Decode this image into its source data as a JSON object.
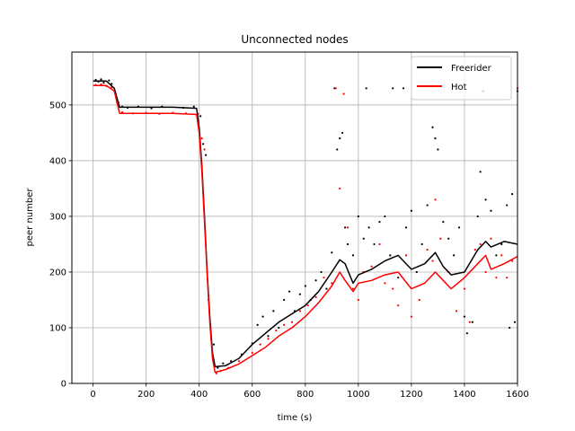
{
  "chart_data": {
    "type": "line",
    "title": "Unconnected nodes",
    "xlabel": "time (s)",
    "ylabel": "peer number",
    "xlim": [
      -80,
      1600
    ],
    "ylim": [
      0,
      595
    ],
    "xticks": [
      0,
      200,
      400,
      600,
      800,
      1000,
      1200,
      1400,
      1600
    ],
    "yticks": [
      0,
      100,
      200,
      300,
      400,
      500
    ],
    "grid": true,
    "legend": "top-right",
    "series": [
      {
        "name": "Freerider",
        "color": "#000000",
        "x": [
          0,
          50,
          80,
          100,
          150,
          200,
          300,
          390,
          400,
          410,
          420,
          430,
          440,
          450,
          460,
          500,
          550,
          600,
          650,
          700,
          750,
          800,
          850,
          900,
          930,
          950,
          980,
          1000,
          1050,
          1100,
          1150,
          1200,
          1250,
          1290,
          1320,
          1350,
          1400,
          1450,
          1480,
          1500,
          1550,
          1600
        ],
        "y": [
          543,
          543,
          530,
          496,
          496,
          496,
          496,
          494,
          460,
          390,
          300,
          200,
          120,
          55,
          30,
          32,
          45,
          70,
          90,
          110,
          125,
          140,
          165,
          200,
          222,
          215,
          180,
          195,
          205,
          220,
          230,
          205,
          215,
          235,
          210,
          195,
          200,
          240,
          255,
          245,
          255,
          250
        ]
      },
      {
        "name": "Hot",
        "color": "#ff0000",
        "x": [
          0,
          50,
          80,
          100,
          150,
          200,
          300,
          390,
          400,
          410,
          420,
          430,
          440,
          450,
          460,
          500,
          550,
          600,
          650,
          700,
          750,
          800,
          850,
          900,
          930,
          950,
          980,
          1000,
          1050,
          1100,
          1150,
          1200,
          1250,
          1290,
          1320,
          1350,
          1400,
          1450,
          1480,
          1500,
          1550,
          1600
        ],
        "y": [
          535,
          535,
          525,
          485,
          485,
          485,
          485,
          483,
          450,
          380,
          290,
          195,
          110,
          45,
          20,
          25,
          35,
          50,
          65,
          85,
          100,
          120,
          145,
          175,
          200,
          185,
          165,
          180,
          185,
          195,
          200,
          170,
          180,
          200,
          185,
          170,
          190,
          215,
          230,
          205,
          215,
          228
        ]
      }
    ],
    "scatter_series": [
      {
        "name": "Freerider",
        "color": "#000000",
        "points": [
          [
            10,
            545
          ],
          [
            20,
            542
          ],
          [
            30,
            546
          ],
          [
            40,
            540
          ],
          [
            60,
            544
          ],
          [
            70,
            538
          ],
          [
            85,
            520
          ],
          [
            95,
            505
          ],
          [
            110,
            497
          ],
          [
            130,
            495
          ],
          [
            170,
            497
          ],
          [
            220,
            494
          ],
          [
            260,
            497
          ],
          [
            340,
            495
          ],
          [
            380,
            497
          ],
          [
            405,
            480
          ],
          [
            415,
            430
          ],
          [
            425,
            410
          ],
          [
            445,
            80
          ],
          [
            455,
            70
          ],
          [
            470,
            28
          ],
          [
            490,
            36
          ],
          [
            520,
            40
          ],
          [
            560,
            52
          ],
          [
            600,
            72
          ],
          [
            620,
            105
          ],
          [
            640,
            120
          ],
          [
            660,
            85
          ],
          [
            680,
            130
          ],
          [
            700,
            100
          ],
          [
            720,
            150
          ],
          [
            740,
            165
          ],
          [
            760,
            130
          ],
          [
            780,
            160
          ],
          [
            800,
            175
          ],
          [
            820,
            150
          ],
          [
            840,
            185
          ],
          [
            860,
            200
          ],
          [
            880,
            170
          ],
          [
            900,
            235
          ],
          [
            910,
            530
          ],
          [
            920,
            420
          ],
          [
            930,
            440
          ],
          [
            940,
            450
          ],
          [
            950,
            280
          ],
          [
            960,
            250
          ],
          [
            980,
            230
          ],
          [
            1000,
            300
          ],
          [
            1020,
            260
          ],
          [
            1030,
            530
          ],
          [
            1040,
            280
          ],
          [
            1060,
            250
          ],
          [
            1080,
            290
          ],
          [
            1100,
            300
          ],
          [
            1120,
            230
          ],
          [
            1130,
            530
          ],
          [
            1150,
            190
          ],
          [
            1170,
            530
          ],
          [
            1180,
            280
          ],
          [
            1200,
            310
          ],
          [
            1220,
            200
          ],
          [
            1240,
            250
          ],
          [
            1260,
            320
          ],
          [
            1280,
            460
          ],
          [
            1290,
            440
          ],
          [
            1300,
            420
          ],
          [
            1320,
            290
          ],
          [
            1340,
            260
          ],
          [
            1360,
            230
          ],
          [
            1380,
            280
          ],
          [
            1400,
            120
          ],
          [
            1410,
            90
          ],
          [
            1430,
            110
          ],
          [
            1450,
            300
          ],
          [
            1460,
            380
          ],
          [
            1470,
            525
          ],
          [
            1480,
            330
          ],
          [
            1500,
            310
          ],
          [
            1520,
            230
          ],
          [
            1540,
            250
          ],
          [
            1560,
            320
          ],
          [
            1570,
            100
          ],
          [
            1580,
            340
          ],
          [
            1590,
            110
          ],
          [
            1600,
            525
          ]
        ]
      },
      {
        "name": "Hot",
        "color": "#ff0000",
        "points": [
          [
            10,
            536
          ],
          [
            30,
            537
          ],
          [
            50,
            534
          ],
          [
            70,
            532
          ],
          [
            90,
            505
          ],
          [
            110,
            487
          ],
          [
            150,
            485
          ],
          [
            200,
            486
          ],
          [
            250,
            484
          ],
          [
            300,
            486
          ],
          [
            350,
            485
          ],
          [
            395,
            484
          ],
          [
            410,
            440
          ],
          [
            420,
            420
          ],
          [
            435,
            150
          ],
          [
            450,
            50
          ],
          [
            465,
            18
          ],
          [
            480,
            22
          ],
          [
            510,
            28
          ],
          [
            550,
            40
          ],
          [
            600,
            55
          ],
          [
            630,
            70
          ],
          [
            660,
            80
          ],
          [
            690,
            95
          ],
          [
            720,
            105
          ],
          [
            750,
            110
          ],
          [
            780,
            130
          ],
          [
            810,
            140
          ],
          [
            840,
            155
          ],
          [
            870,
            190
          ],
          [
            900,
            180
          ],
          [
            915,
            530
          ],
          [
            930,
            350
          ],
          [
            945,
            520
          ],
          [
            960,
            280
          ],
          [
            980,
            170
          ],
          [
            1000,
            150
          ],
          [
            1020,
            200
          ],
          [
            1050,
            210
          ],
          [
            1080,
            250
          ],
          [
            1100,
            180
          ],
          [
            1130,
            170
          ],
          [
            1150,
            140
          ],
          [
            1180,
            230
          ],
          [
            1200,
            120
          ],
          [
            1230,
            150
          ],
          [
            1260,
            240
          ],
          [
            1280,
            220
          ],
          [
            1290,
            330
          ],
          [
            1310,
            260
          ],
          [
            1340,
            200
          ],
          [
            1370,
            130
          ],
          [
            1400,
            170
          ],
          [
            1420,
            110
          ],
          [
            1440,
            240
          ],
          [
            1460,
            250
          ],
          [
            1480,
            200
          ],
          [
            1500,
            260
          ],
          [
            1520,
            190
          ],
          [
            1540,
            230
          ],
          [
            1560,
            190
          ],
          [
            1580,
            220
          ],
          [
            1600,
            530
          ]
        ]
      }
    ]
  }
}
